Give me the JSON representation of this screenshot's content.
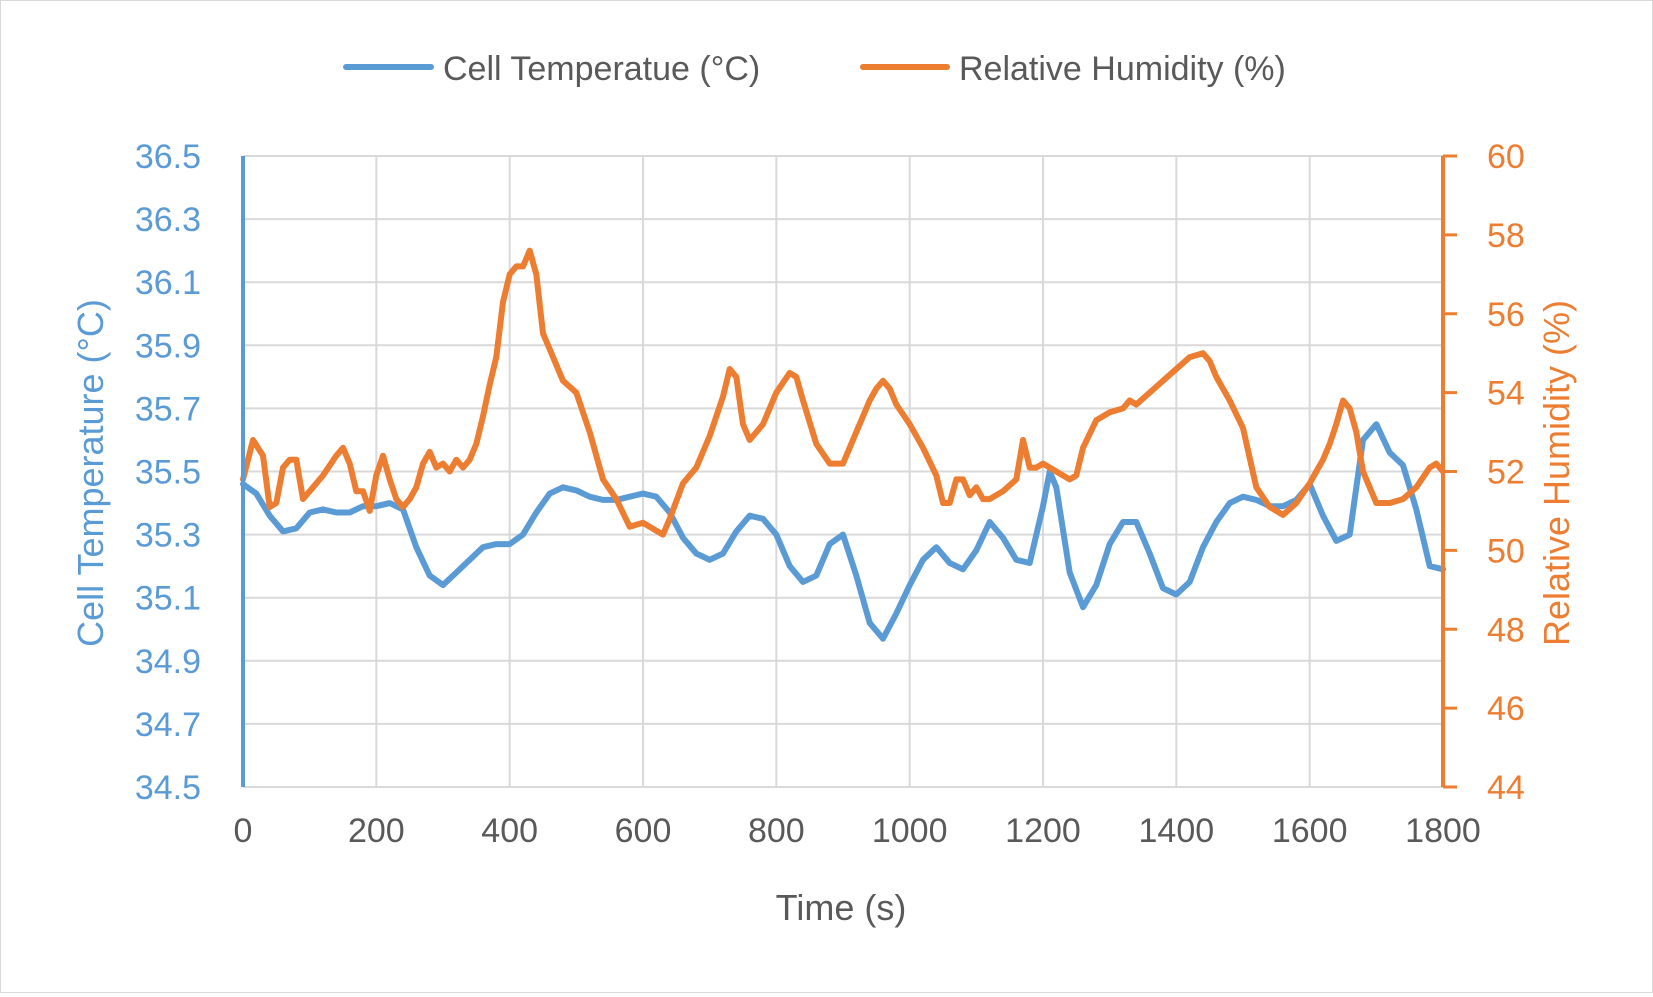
{
  "chart_data": {
    "type": "line",
    "title": "",
    "xlabel": "Time (s)",
    "ylabel_left": "Cell Temperature (°C)",
    "ylabel_right": "Relative Humidity (%)",
    "xlim": [
      0,
      1800
    ],
    "ylim_left": [
      34.5,
      36.5
    ],
    "ylim_right": [
      44,
      60
    ],
    "x_ticks": [
      0,
      200,
      400,
      600,
      800,
      1000,
      1200,
      1400,
      1600,
      1800
    ],
    "y_ticks_left": [
      "34.5",
      "34.7",
      "34.9",
      "35.1",
      "35.3",
      "35.5",
      "35.7",
      "35.9",
      "36.1",
      "36.3",
      "36.5"
    ],
    "y_ticks_right": [
      44,
      46,
      48,
      50,
      52,
      54,
      56,
      58,
      60
    ],
    "grid": true,
    "legend_position": "top",
    "series": [
      {
        "name": "Cell Temperatue (°C)",
        "axis": "left",
        "color": "#5b9bd5",
        "x": [
          0,
          20,
          40,
          60,
          80,
          100,
          120,
          140,
          160,
          180,
          200,
          220,
          240,
          260,
          280,
          300,
          320,
          340,
          360,
          380,
          400,
          420,
          440,
          460,
          480,
          500,
          520,
          540,
          560,
          580,
          600,
          620,
          640,
          660,
          680,
          700,
          720,
          740,
          760,
          780,
          800,
          820,
          840,
          860,
          880,
          900,
          920,
          940,
          960,
          980,
          1000,
          1020,
          1040,
          1060,
          1080,
          1100,
          1120,
          1140,
          1160,
          1180,
          1200,
          1210,
          1220,
          1240,
          1260,
          1280,
          1300,
          1320,
          1340,
          1360,
          1380,
          1400,
          1420,
          1440,
          1460,
          1480,
          1500,
          1520,
          1540,
          1560,
          1580,
          1600,
          1620,
          1640,
          1660,
          1680,
          1700,
          1720,
          1740,
          1760,
          1780,
          1800
        ],
        "values": [
          35.46,
          35.43,
          35.36,
          35.31,
          35.32,
          35.37,
          35.38,
          35.37,
          35.37,
          35.39,
          35.39,
          35.4,
          35.38,
          35.26,
          35.17,
          35.14,
          35.18,
          35.22,
          35.26,
          35.27,
          35.27,
          35.3,
          35.37,
          35.43,
          35.45,
          35.44,
          35.42,
          35.41,
          35.41,
          35.42,
          35.43,
          35.42,
          35.37,
          35.29,
          35.24,
          35.22,
          35.24,
          35.31,
          35.36,
          35.35,
          35.3,
          35.2,
          35.15,
          35.17,
          35.27,
          35.3,
          35.17,
          35.02,
          34.97,
          35.05,
          35.14,
          35.22,
          35.26,
          35.21,
          35.19,
          35.25,
          35.34,
          35.29,
          35.22,
          35.21,
          35.39,
          35.5,
          35.45,
          35.18,
          35.07,
          35.14,
          35.27,
          35.34,
          35.34,
          35.24,
          35.13,
          35.11,
          35.15,
          35.26,
          35.34,
          35.4,
          35.42,
          35.41,
          35.39,
          35.39,
          35.41,
          35.46,
          35.36,
          35.28,
          35.3,
          35.6,
          35.65,
          35.56,
          35.52,
          35.38,
          35.2,
          35.19
        ]
      },
      {
        "name": "Relative Humidity (%)",
        "axis": "right",
        "color": "#ed7d31",
        "x": [
          0,
          15,
          30,
          40,
          50,
          60,
          70,
          80,
          90,
          100,
          120,
          140,
          150,
          160,
          170,
          180,
          190,
          200,
          210,
          220,
          230,
          240,
          250,
          260,
          270,
          280,
          290,
          300,
          310,
          320,
          330,
          340,
          350,
          360,
          370,
          380,
          390,
          400,
          410,
          420,
          430,
          440,
          450,
          460,
          480,
          500,
          520,
          540,
          560,
          580,
          600,
          620,
          630,
          640,
          660,
          680,
          700,
          720,
          730,
          740,
          750,
          760,
          780,
          800,
          820,
          830,
          840,
          860,
          880,
          900,
          920,
          940,
          950,
          960,
          970,
          980,
          1000,
          1020,
          1040,
          1050,
          1060,
          1070,
          1080,
          1090,
          1100,
          1110,
          1120,
          1140,
          1160,
          1170,
          1180,
          1190,
          1200,
          1220,
          1240,
          1250,
          1260,
          1280,
          1300,
          1320,
          1330,
          1340,
          1360,
          1380,
          1400,
          1420,
          1440,
          1450,
          1460,
          1480,
          1500,
          1520,
          1540,
          1560,
          1580,
          1600,
          1610,
          1620,
          1630,
          1640,
          1650,
          1660,
          1670,
          1680,
          1690,
          1700,
          1720,
          1740,
          1760,
          1780,
          1790,
          1800
        ],
        "values": [
          51.8,
          52.8,
          52.4,
          51.1,
          51.2,
          52.1,
          52.3,
          52.3,
          51.3,
          51.5,
          51.9,
          52.4,
          52.6,
          52.2,
          51.5,
          51.5,
          51.0,
          51.9,
          52.4,
          51.8,
          51.3,
          51.1,
          51.3,
          51.6,
          52.2,
          52.5,
          52.1,
          52.2,
          52.0,
          52.3,
          52.1,
          52.3,
          52.7,
          53.4,
          54.2,
          54.9,
          56.3,
          57.0,
          57.2,
          57.2,
          57.6,
          57.0,
          55.5,
          55.1,
          54.3,
          54.0,
          53.0,
          51.8,
          51.3,
          50.6,
          50.7,
          50.5,
          50.4,
          50.8,
          51.7,
          52.1,
          52.9,
          53.9,
          54.6,
          54.4,
          53.2,
          52.8,
          53.2,
          54.0,
          54.5,
          54.4,
          53.8,
          52.7,
          52.2,
          52.2,
          53.0,
          53.8,
          54.1,
          54.3,
          54.1,
          53.7,
          53.2,
          52.6,
          51.9,
          51.2,
          51.2,
          51.8,
          51.8,
          51.4,
          51.6,
          51.3,
          51.3,
          51.5,
          51.8,
          52.8,
          52.1,
          52.1,
          52.2,
          52.0,
          51.8,
          51.9,
          52.6,
          53.3,
          53.5,
          53.6,
          53.8,
          53.7,
          54.0,
          54.3,
          54.6,
          54.9,
          55.0,
          54.8,
          54.4,
          53.8,
          53.1,
          51.6,
          51.1,
          50.9,
          51.2,
          51.7,
          52.0,
          52.3,
          52.7,
          53.2,
          53.8,
          53.6,
          53.0,
          52.0,
          51.6,
          51.2,
          51.2,
          51.3,
          51.6,
          52.1,
          52.2,
          52.0
        ]
      }
    ]
  }
}
